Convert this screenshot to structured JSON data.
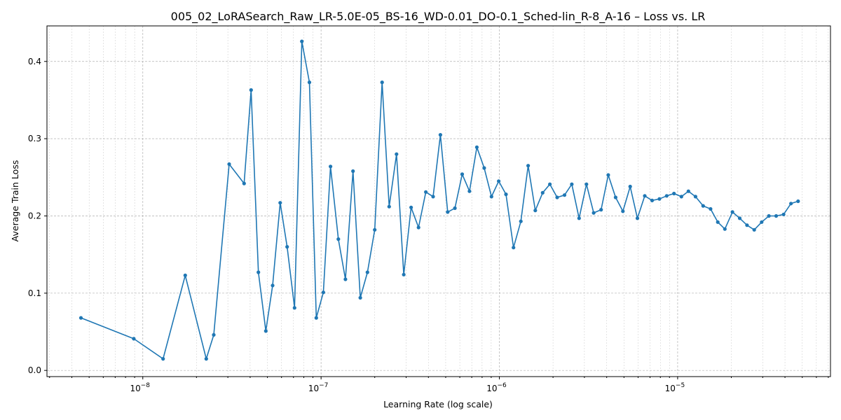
{
  "chart_data": {
    "type": "line",
    "title": "005_02_LoRASearch_Raw_LR-5.0E-05_BS-16_WD-0.01_DO-0.1_Sched-lin_R-8_A-16 – Loss vs. LR",
    "xlabel": "Learning Rate (log scale)",
    "ylabel": "Average Train Loss",
    "xscale": "log",
    "xlim": [
      2.9e-09,
      7.2e-05
    ],
    "ylim": [
      -0.008,
      0.446
    ],
    "grid": "on",
    "x_tick_labels": [
      {
        "base": "10",
        "exp": "−8",
        "value": 1e-08
      },
      {
        "base": "10",
        "exp": "−7",
        "value": 1e-07
      },
      {
        "base": "10",
        "exp": "−6",
        "value": 1e-06
      },
      {
        "base": "10",
        "exp": "−5",
        "value": 1e-05
      }
    ],
    "y_tick_labels": [
      "0.0",
      "0.1",
      "0.2",
      "0.3",
      "0.4"
    ],
    "color": "#1f77b4",
    "series": [
      {
        "x": [
          4.5e-09,
          8.9e-09,
          1.3e-08,
          1.73e-08,
          2.27e-08,
          2.5e-08,
          3.05e-08,
          3.7e-08,
          4.05e-08,
          4.45e-08,
          4.9e-08,
          5.35e-08,
          5.9e-08,
          6.45e-08,
          7.1e-08,
          7.8e-08,
          8.6e-08,
          9.4e-08,
          1.03e-07,
          1.13e-07,
          1.25e-07,
          1.37e-07,
          1.51e-07,
          1.66e-07,
          1.82e-07,
          2e-07,
          2.2e-07,
          2.41e-07,
          2.65e-07,
          2.91e-07,
          3.2e-07,
          3.52e-07,
          3.87e-07,
          4.25e-07,
          4.67e-07,
          5.13e-07,
          5.63e-07,
          6.19e-07,
          6.8e-07,
          7.48e-07,
          8.22e-07,
          9.03e-07,
          9.92e-07,
          1.09e-06,
          1.2e-06,
          1.32e-06,
          1.45e-06,
          1.59e-06,
          1.75e-06,
          1.92e-06,
          2.11e-06,
          2.32e-06,
          2.55e-06,
          2.8e-06,
          3.08e-06,
          3.38e-06,
          3.72e-06,
          4.08e-06,
          4.49e-06,
          4.93e-06,
          5.42e-06,
          5.95e-06,
          6.54e-06,
          7.19e-06,
          7.9e-06,
          8.68e-06,
          9.54e-06,
          1.05e-05,
          1.15e-05,
          1.26e-05,
          1.39e-05,
          1.53e-05,
          1.68e-05,
          1.84e-05,
          2.03e-05,
          2.23e-05,
          2.45e-05,
          2.69e-05,
          2.96e-05,
          3.25e-05,
          3.57e-05,
          3.93e-05,
          4.32e-05,
          4.74e-05
        ],
        "y": [
          0.068,
          0.041,
          0.015,
          0.123,
          0.015,
          0.046,
          0.267,
          0.242,
          0.363,
          0.127,
          0.051,
          0.11,
          0.217,
          0.16,
          0.081,
          0.426,
          0.373,
          0.068,
          0.101,
          0.264,
          0.17,
          0.118,
          0.258,
          0.094,
          0.127,
          0.182,
          0.373,
          0.212,
          0.28,
          0.124,
          0.211,
          0.185,
          0.231,
          0.225,
          0.305,
          0.205,
          0.21,
          0.254,
          0.232,
          0.289,
          0.262,
          0.225,
          0.245,
          0.228,
          0.159,
          0.193,
          0.265,
          0.207,
          0.23,
          0.241,
          0.224,
          0.227,
          0.241,
          0.197,
          0.241,
          0.204,
          0.208,
          0.253,
          0.224,
          0.206,
          0.238,
          0.197,
          0.226,
          0.22,
          0.222,
          0.226,
          0.229,
          0.225,
          0.232,
          0.225,
          0.213,
          0.209,
          0.192,
          0.183,
          0.205,
          0.197,
          0.188,
          0.182,
          0.192,
          0.2,
          0.2,
          0.202,
          0.216,
          0.219
        ]
      }
    ]
  }
}
